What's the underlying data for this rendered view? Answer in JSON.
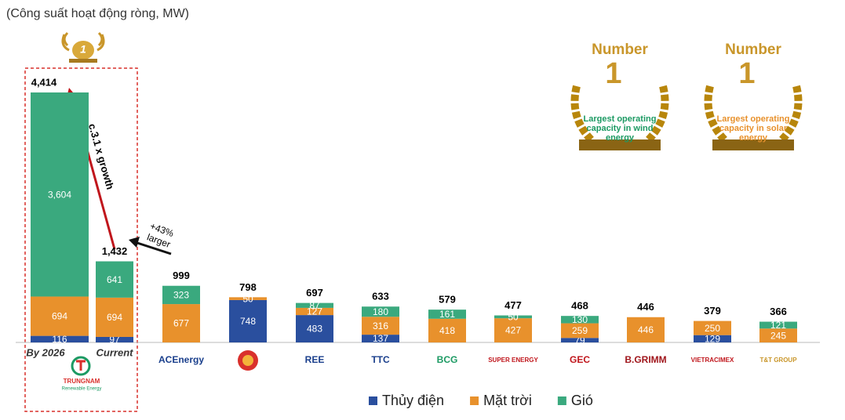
{
  "chart_data": {
    "type": "stacked-bar",
    "title": "(Công suất hoạt động ròng, MW)",
    "categories": [
      "By 2026",
      "Current",
      "ACEnergy",
      null,
      "REE",
      "TTC",
      "BCG",
      "SUPER ENERGY",
      "GEC",
      "B.GRIMM",
      "VIETRACIMEX",
      "T&T GROUP"
    ],
    "series": [
      {
        "name": "Thủy điện",
        "color": "#2a4f9e",
        "values": [
          116,
          97,
          null,
          748,
          483,
          137,
          null,
          null,
          79,
          null,
          129,
          null
        ]
      },
      {
        "name": "Mặt trời",
        "color": "#e8912c",
        "values": [
          694,
          694,
          677,
          50,
          127,
          316,
          418,
          427,
          259,
          446,
          250,
          245
        ]
      },
      {
        "name": "Gió",
        "color": "#3aa97e",
        "values": [
          3604,
          641,
          323,
          null,
          87,
          180,
          161,
          50,
          130,
          null,
          null,
          121
        ]
      }
    ],
    "totals": [
      4414,
      1432,
      999,
      798,
      697,
      633,
      579,
      477,
      468,
      446,
      379,
      366
    ],
    "totals_labels": [
      "4,414",
      "1,432",
      "999",
      "798",
      "697",
      "633",
      "579",
      "477",
      "468",
      "446",
      "379",
      "366"
    ],
    "value_labels": [
      [
        "116",
        "97",
        null,
        "748",
        "483",
        "137",
        null,
        null,
        "79",
        null,
        "129",
        null
      ],
      [
        "694",
        "694",
        "677",
        "50",
        "127",
        "316",
        "418",
        "427",
        "259",
        "446",
        "250",
        "245"
      ],
      [
        "3,604",
        "641",
        "323",
        null,
        "87",
        "180",
        "161",
        "50",
        "130",
        null,
        null,
        "121"
      ]
    ],
    "logo_label": "TRUNGNAM",
    "logo_sub": "Renewable Energy",
    "annotations": {
      "growth": "c.3.1 x growth",
      "larger_1": "+43%",
      "larger_2": "larger",
      "rank": "1"
    },
    "badges": [
      {
        "top": "Number",
        "num": "1",
        "text": [
          "Largest operating",
          "capacity in wind",
          "energy"
        ]
      },
      {
        "top": "Number",
        "num": "1",
        "text": [
          "Largest operating",
          "capacity in solar",
          "energy"
        ]
      }
    ]
  }
}
